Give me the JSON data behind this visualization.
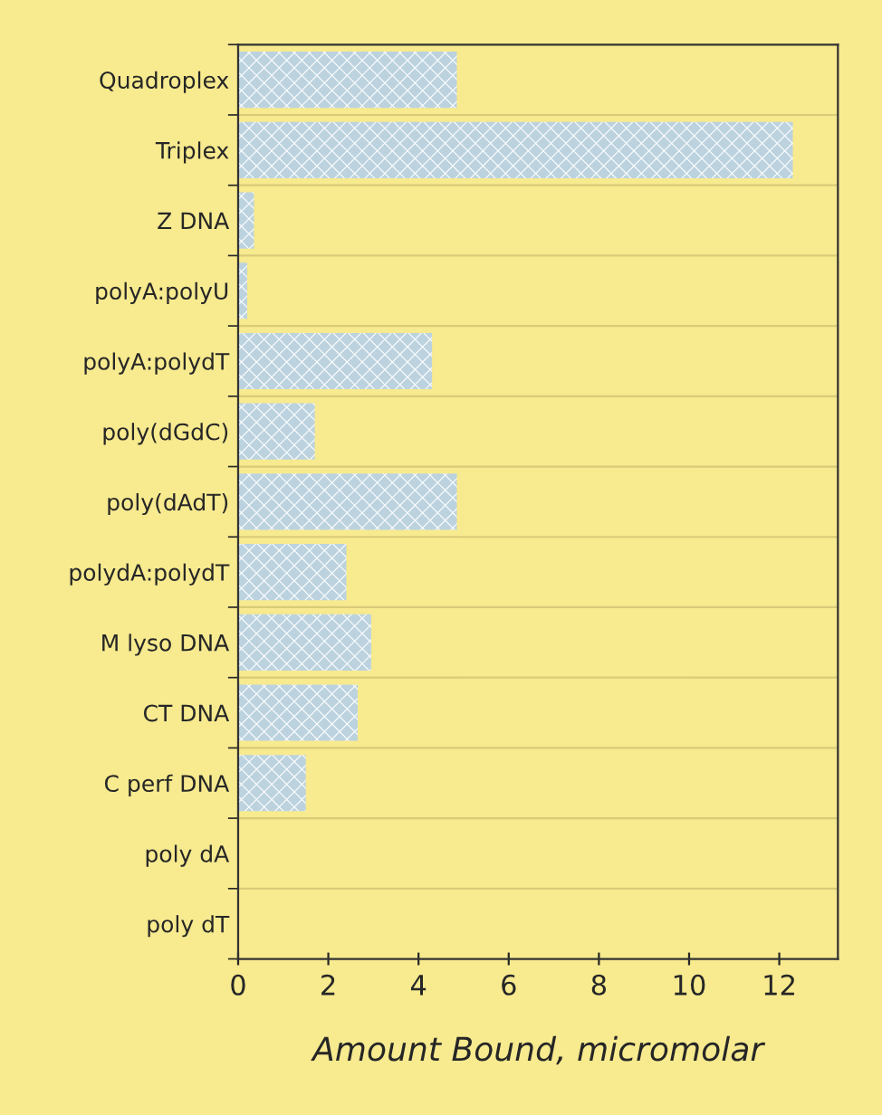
{
  "chart_data": {
    "type": "bar",
    "orientation": "horizontal",
    "xlabel": "Amount Bound, micromolar",
    "categories": [
      "Quadroplex",
      "Triplex",
      "Z DNA",
      "polyA:polyU",
      "polyA:polydT",
      "poly(dGdC)",
      "poly(dAdT)",
      "polydA:polydT",
      "M lyso DNA",
      "CT DNA",
      "C perf DNA",
      "poly dA",
      "poly dT"
    ],
    "values": [
      4.85,
      12.3,
      0.35,
      0.2,
      4.3,
      1.7,
      4.85,
      2.4,
      2.95,
      2.65,
      1.5,
      0,
      0
    ],
    "color": "#bcd3df",
    "xlim": [
      0,
      13.3
    ],
    "xticks": [
      0,
      2,
      4,
      6,
      8,
      10,
      12
    ],
    "grid": "y"
  }
}
